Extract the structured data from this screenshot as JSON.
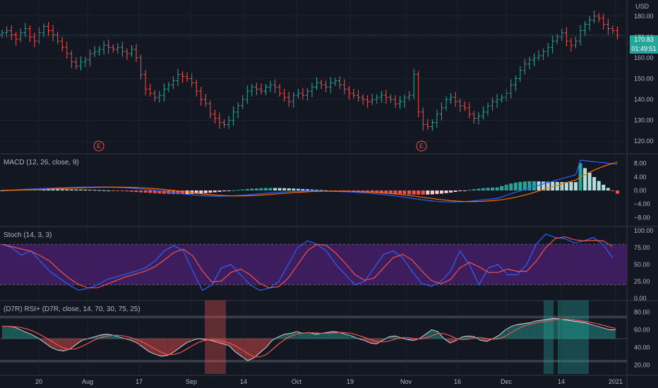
{
  "header": {
    "currency": "USD"
  },
  "price_axis": {
    "ticks": [
      "180.00",
      "170.00",
      "160.00",
      "150.00",
      "140.00",
      "130.00",
      "120.00"
    ],
    "last_price": "170.83",
    "countdown": "01:49:51",
    "last_price_color": "#26a69a"
  },
  "time_axis": {
    "labels": [
      "20",
      "Aug",
      "17",
      "Sep",
      "14",
      "Oct",
      "19",
      "Nov",
      "16",
      "Dec",
      "14",
      "2021"
    ]
  },
  "event_markers": [
    "E",
    "E"
  ],
  "indicators": {
    "macd": {
      "label": "MACD (12, 26, close, 9)",
      "ticks": [
        "8.00",
        "4.00",
        "0.00",
        "−4.00",
        "−8.00"
      ]
    },
    "stoch": {
      "label": "Stoch (14, 3, 3)",
      "ticks": [
        "100.00",
        "75.00",
        "50.00",
        "25.00",
        "0.00"
      ]
    },
    "rsi": {
      "label": "(D7R) RSI+ (D7R, close, 14, 70, 30, 75, 25)",
      "ticks": [
        "80.00",
        "60.00",
        "40.00",
        "20.00"
      ]
    }
  },
  "colors": {
    "background": "#131722",
    "up": "#26a69a",
    "down": "#ef5350",
    "macd_line": "#2962ff",
    "signal_line": "#ff6d00",
    "stoch_k": "#2962ff",
    "stoch_d": "#ef5350",
    "stoch_band": "#4a1f6e",
    "grid": "#2a2e39"
  },
  "chart_data": {
    "type": "candlestick",
    "close_series": [
      172,
      173,
      171,
      169,
      172,
      174,
      170,
      168,
      172,
      175,
      173,
      171,
      168,
      165,
      162,
      158,
      156,
      158,
      159,
      162,
      163,
      164,
      166,
      165,
      164,
      165,
      163,
      162,
      164,
      160,
      152,
      145,
      143,
      141,
      142,
      145,
      147,
      149,
      152,
      151,
      150,
      148,
      144,
      140,
      138,
      133,
      131,
      129,
      128,
      130,
      134,
      137,
      140,
      144,
      146,
      145,
      144,
      146,
      147,
      146,
      143,
      141,
      139,
      142,
      143,
      142,
      144,
      146,
      148,
      147,
      146,
      148,
      149,
      147,
      145,
      143,
      142,
      141,
      140,
      139,
      140,
      141,
      142,
      141,
      140,
      138,
      139,
      141,
      142,
      152,
      134,
      128,
      127,
      129,
      133,
      136,
      140,
      141,
      139,
      137,
      136,
      133,
      131,
      132,
      134,
      137,
      139,
      140,
      141,
      143,
      147,
      150,
      154,
      157,
      159,
      160,
      161,
      163,
      165,
      168,
      170,
      172,
      168,
      166,
      168,
      173,
      176,
      178,
      180,
      179,
      176,
      174,
      173,
      170.83
    ],
    "rsi_series": [
      64,
      64,
      63,
      60,
      57,
      54,
      50,
      45,
      40,
      37,
      36,
      38,
      43,
      48,
      50,
      52,
      54,
      55,
      54,
      52,
      50,
      48,
      45,
      40,
      35,
      32,
      30,
      31,
      35,
      40,
      45,
      48,
      50,
      49,
      48,
      46,
      44,
      42,
      35,
      30,
      25,
      28,
      34,
      40,
      48,
      52,
      55,
      56,
      58,
      56,
      57,
      55,
      56,
      57,
      58,
      57,
      55,
      53,
      50,
      48,
      45,
      44,
      48,
      52,
      53,
      51,
      49,
      48,
      50,
      55,
      60,
      58,
      50,
      45,
      48,
      52,
      53,
      52,
      48,
      47,
      50,
      54,
      60,
      64,
      66,
      67,
      68,
      70,
      71,
      72,
      73,
      72,
      71,
      70,
      69,
      68,
      66,
      64,
      62,
      60,
      60
    ],
    "stoch_k_series": [
      80,
      75,
      64,
      70,
      55,
      40,
      30,
      20,
      12,
      15,
      20,
      28,
      32,
      36,
      40,
      45,
      55,
      70,
      78,
      70,
      40,
      12,
      20,
      45,
      50,
      35,
      20,
      12,
      15,
      25,
      50,
      75,
      85,
      80,
      70,
      50,
      35,
      20,
      25,
      45,
      65,
      70,
      60,
      40,
      22,
      18,
      25,
      40,
      70,
      50,
      20,
      45,
      50,
      35,
      35,
      50,
      80,
      95,
      90,
      88,
      82,
      85,
      90,
      80,
      60
    ]
  }
}
